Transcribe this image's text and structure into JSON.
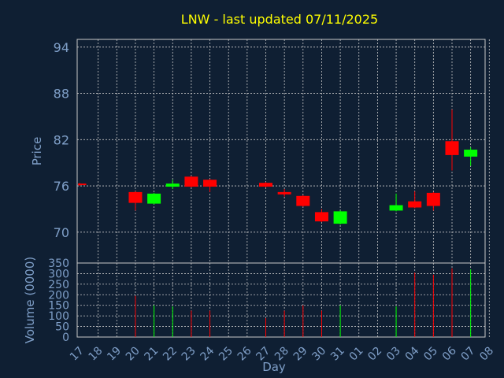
{
  "chart_data": {
    "type": "candlestick",
    "title": "LNW - last updated 07/11/2025",
    "xlabel": "Day",
    "ylabel": "Price",
    "volume_label": "Volume (0000)",
    "grid": true,
    "days": [
      "17",
      "18",
      "19",
      "20",
      "21",
      "22",
      "23",
      "24",
      "25",
      "26",
      "27",
      "28",
      "29",
      "30",
      "31",
      "01",
      "02",
      "03",
      "04",
      "05",
      "06",
      "07",
      "08"
    ],
    "price_ylim": [
      66,
      95
    ],
    "price_ticks": [
      70,
      76,
      82,
      88,
      94
    ],
    "volume_ylim": [
      0,
      350
    ],
    "volume_ticks": [
      0,
      50,
      100,
      150,
      200,
      250,
      300,
      350
    ],
    "candles": [
      {
        "day": "17",
        "open": 76.3,
        "close": 76.1,
        "high": 76.4,
        "low": 76.0,
        "volume": 0
      },
      {
        "day": "20",
        "open": 75.2,
        "close": 73.8,
        "high": 75.3,
        "low": 72.8,
        "volume": 195
      },
      {
        "day": "21",
        "open": 73.7,
        "close": 75.0,
        "high": 75.1,
        "low": 73.6,
        "volume": 150
      },
      {
        "day": "22",
        "open": 75.9,
        "close": 76.3,
        "high": 76.8,
        "low": 75.6,
        "volume": 145
      },
      {
        "day": "23",
        "open": 77.2,
        "close": 75.9,
        "high": 77.3,
        "low": 75.8,
        "volume": 125
      },
      {
        "day": "24",
        "open": 76.8,
        "close": 75.9,
        "high": 76.9,
        "low": 75.2,
        "volume": 125
      },
      {
        "day": "27",
        "open": 76.4,
        "close": 75.9,
        "high": 76.5,
        "low": 75.8,
        "volume": 90
      },
      {
        "day": "28",
        "open": 75.2,
        "close": 74.9,
        "high": 75.6,
        "low": 74.6,
        "volume": 125
      },
      {
        "day": "29",
        "open": 74.7,
        "close": 73.4,
        "high": 74.8,
        "low": 73.3,
        "volume": 150
      },
      {
        "day": "30",
        "open": 72.6,
        "close": 71.4,
        "high": 73.0,
        "low": 71.3,
        "volume": 125
      },
      {
        "day": "31",
        "open": 71.1,
        "close": 72.7,
        "high": 72.8,
        "low": 71.0,
        "volume": 150
      },
      {
        "day": "03",
        "open": 72.8,
        "close": 73.5,
        "high": 75.0,
        "low": 72.7,
        "volume": 145
      },
      {
        "day": "04",
        "open": 74.0,
        "close": 73.2,
        "high": 75.3,
        "low": 73.1,
        "volume": 305
      },
      {
        "day": "05",
        "open": 75.1,
        "close": 73.4,
        "high": 75.2,
        "low": 72.8,
        "volume": 295
      },
      {
        "day": "06",
        "open": 81.8,
        "close": 80.0,
        "high": 85.9,
        "low": 78.0,
        "volume": 325
      },
      {
        "day": "07",
        "open": 79.8,
        "close": 80.7,
        "high": 81.0,
        "low": 78.6,
        "volume": 320
      }
    ],
    "colors": {
      "background": "#0f1f33",
      "grid": "#c8c8c8",
      "axis_text": "#7f9fc8",
      "title": "#ffff00",
      "up": "#00ff00",
      "down": "#ff0000"
    }
  }
}
